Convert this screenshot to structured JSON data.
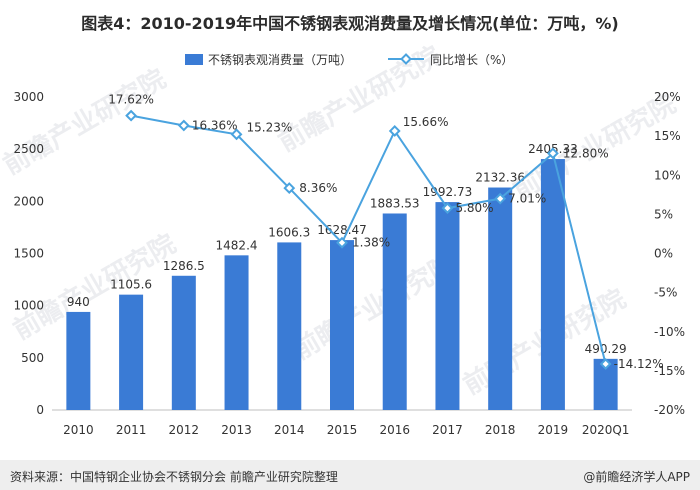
{
  "title": "图表4：2010-2019年中国不锈钢表观消费量及增长情况(单位：万吨，%)",
  "colors": {
    "bar": "#3a7bd5",
    "line": "#4aa3df",
    "grid": "#d9d9d9",
    "text": "#333333"
  },
  "watermark": "前瞻产业研究院",
  "chart_data": {
    "type": "bar+line",
    "categories": [
      "2010",
      "2011",
      "2012",
      "2013",
      "2014",
      "2015",
      "2016",
      "2017",
      "2018",
      "2019",
      "2020Q1"
    ],
    "series": [
      {
        "name": "不锈钢表观消费量（万吨）",
        "type": "bar",
        "axis": "left",
        "values": [
          940,
          1105.6,
          1286.5,
          1482.4,
          1606.3,
          1628.47,
          1883.53,
          1992.73,
          2132.36,
          2405.33,
          490.29
        ],
        "labels": [
          "940",
          "1105.6",
          "1286.5",
          "1482.4",
          "1606.3",
          "1628.47",
          "1883.53",
          "1992.73",
          "2132.36",
          "2405.33",
          "490.29"
        ]
      },
      {
        "name": "同比增长（%）",
        "type": "line",
        "axis": "right",
        "values": [
          null,
          17.62,
          16.36,
          15.23,
          8.36,
          1.38,
          15.66,
          5.8,
          7.01,
          12.8,
          -14.12
        ],
        "labels": [
          "",
          "17.62%",
          "16.36%",
          "15.23%",
          "8.36%",
          "1.38%",
          "15.66%",
          "5.80%",
          "7.01%",
          "12.80%",
          "-14.12%"
        ]
      }
    ],
    "ylim_left": [
      0,
      3000
    ],
    "yticks_left": [
      "0",
      "500",
      "1000",
      "1500",
      "2000",
      "2500",
      "3000"
    ],
    "ylim_right": [
      -20,
      20
    ],
    "yticks_right": [
      "-20%",
      "-15%",
      "-10%",
      "-5%",
      "0%",
      "5%",
      "10%",
      "15%",
      "20%"
    ],
    "legend_position": "top-center"
  },
  "footer": {
    "source": "资料来源：中国特钢企业协会不锈钢分会 前瞻产业研究院整理",
    "credit": "@前瞻经济学人APP"
  }
}
